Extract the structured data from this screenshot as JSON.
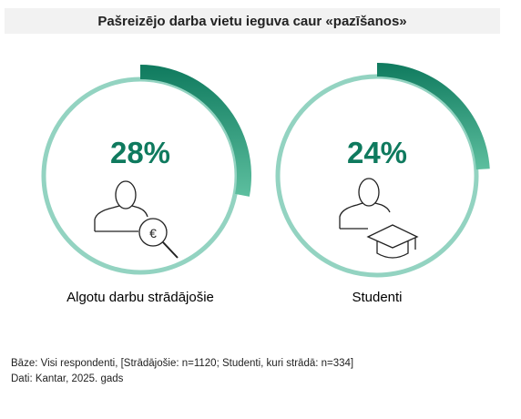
{
  "title": "Pašreizējo darba vietu ieguva caur «pazīšanos»",
  "chart_data": [
    {
      "type": "pie",
      "label": "Algotu darbu strādājošie",
      "value": 28,
      "value_text": "28%",
      "icon": "person-euro-magnifier-icon"
    },
    {
      "type": "pie",
      "label": "Studenti",
      "value": 24,
      "value_text": "24%",
      "icon": "person-graduation-cap-icon"
    }
  ],
  "colors": {
    "ring": "#93d3c1",
    "accent_dark": "#0f7a5e",
    "accent_light": "#5dbf9f",
    "title_bg": "#f2f2f2"
  },
  "footer": {
    "base_note": "Bāze: Visi respondenti, [Strādājošie: n=1120; Studenti, kuri strādā: n=334]",
    "source_note": "Dati: Kantar, 2025. gads"
  }
}
